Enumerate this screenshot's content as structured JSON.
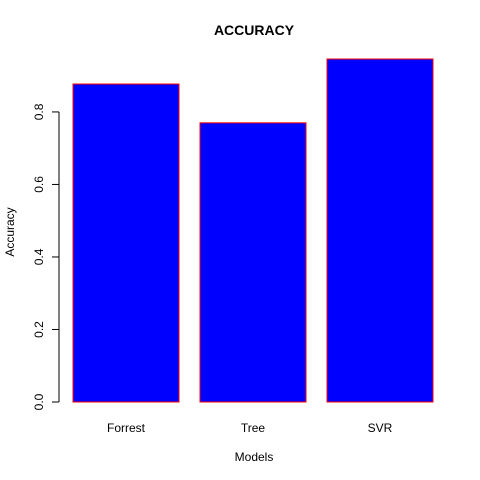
{
  "chart_data": {
    "type": "bar",
    "title": "ACCURACY",
    "xlabel": "Models",
    "ylabel": "Accuracy",
    "categories": [
      "Forrest",
      "Tree",
      "SVR"
    ],
    "values": [
      0.877,
      0.77,
      0.946
    ],
    "ylim": [
      0,
      0.946
    ],
    "yticks": [
      0.0,
      0.2,
      0.4,
      0.6,
      0.8
    ],
    "ytick_labels": [
      "0.0",
      "0.2",
      "0.4",
      "0.6",
      "0.8"
    ],
    "grid": false,
    "legend": "none",
    "bar_fill_color": "#0000ff",
    "bar_border_color": "#ff0000"
  }
}
